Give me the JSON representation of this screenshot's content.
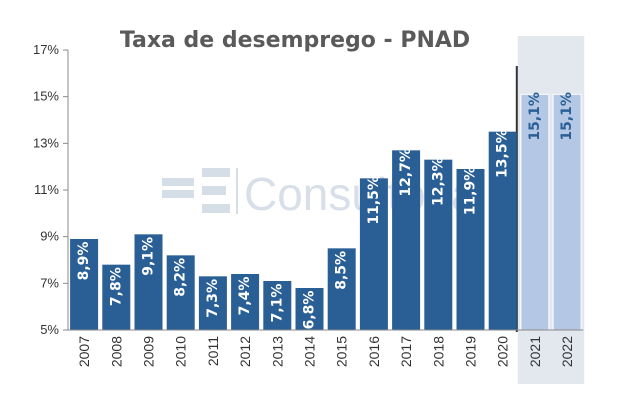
{
  "chart_data": {
    "type": "bar",
    "title": "Taxa de desemprego - PNAD",
    "categories": [
      "2007",
      "2008",
      "2009",
      "2010",
      "2011",
      "2012",
      "2013",
      "2014",
      "2015",
      "2016",
      "2017",
      "2018",
      "2019",
      "2020",
      "2021",
      "2022"
    ],
    "values": [
      8.9,
      7.8,
      9.1,
      8.2,
      7.3,
      7.4,
      7.1,
      6.8,
      8.5,
      11.5,
      12.7,
      12.3,
      11.9,
      13.5,
      15.1,
      15.1
    ],
    "data_labels": [
      "8,9%",
      "7,8%",
      "9,1%",
      "8,2%",
      "7,3%",
      "7,4%",
      "7,1%",
      "6,8%",
      "8,5%",
      "11,5%",
      "12,7%",
      "12,3%",
      "11,9%",
      "13,5%",
      "15,1%",
      "15,1%"
    ],
    "projected": [
      false,
      false,
      false,
      false,
      false,
      false,
      false,
      false,
      false,
      false,
      false,
      false,
      false,
      false,
      true,
      true
    ],
    "ylim": [
      5,
      17
    ],
    "yticks": [
      5,
      7,
      9,
      11,
      13,
      15,
      17
    ],
    "ytick_labels": [
      "5%",
      "7%",
      "9%",
      "11%",
      "13%",
      "15%",
      "17%"
    ],
    "xlabel": "",
    "ylabel": "",
    "grid": false,
    "legend": "none",
    "colors": {
      "actual_bar": "#2a5f95",
      "projected_bar": "#b4c8e6",
      "projected_region": "#e3e8ee",
      "actual_label": "#ffffff",
      "projected_label": "#2a5f95",
      "divider": "#333333"
    }
  },
  "watermark": {
    "logo_text": "4E",
    "text": "Consultoria"
  }
}
